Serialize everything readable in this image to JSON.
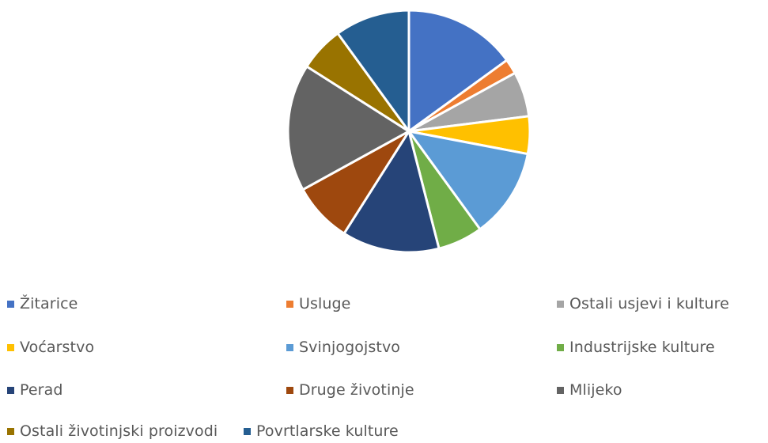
{
  "chart_data": {
    "type": "pie",
    "title": "",
    "legend_position": "bottom",
    "slices": [
      {
        "label": "Žitarice",
        "value": 15,
        "color": "#4472C4"
      },
      {
        "label": "Usluge",
        "value": 2,
        "color": "#ED7D31"
      },
      {
        "label": "Ostali usjevi i kulture",
        "value": 6,
        "color": "#A5A5A5"
      },
      {
        "label": "Voćarstvo",
        "value": 5,
        "color": "#FFC000"
      },
      {
        "label": "Svinjogojstvo",
        "value": 12,
        "color": "#5B9BD5"
      },
      {
        "label": "Industrijske kulture",
        "value": 6,
        "color": "#70AD47"
      },
      {
        "label": "Perad",
        "value": 13,
        "color": "#264478"
      },
      {
        "label": "Druge životinje",
        "value": 8,
        "color": "#9E480E"
      },
      {
        "label": "Mlijeko",
        "value": 17,
        "color": "#636363"
      },
      {
        "label": "Ostali životinjski proizvodi",
        "value": 6,
        "color": "#997300"
      },
      {
        "label": "Povrtlarske kulture",
        "value": 10,
        "color": "#255E91"
      }
    ]
  }
}
